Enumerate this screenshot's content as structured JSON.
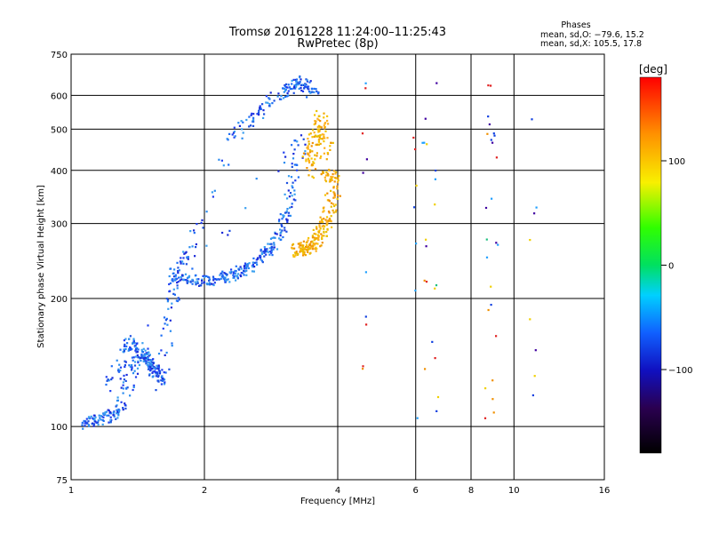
{
  "chart_data": {
    "type": "scatter",
    "title": "Tromsø 20161228 11:24:00–11:25:43",
    "subtitle": "RwPretec (8p)",
    "phases_header": "Phases",
    "phases_line1": "mean, sd,O: −79.6, 15.2",
    "phases_line2": "mean, sd,X: 105.5, 17.8",
    "xlabel": "Frequency [MHz]",
    "ylabel": "Stationary phase Virtual Height [km]",
    "x_scale": "log",
    "y_scale": "log",
    "xlim": [
      1,
      16
    ],
    "ylim": [
      75,
      750
    ],
    "x_ticks": [
      1,
      2,
      4,
      6,
      8,
      10,
      16
    ],
    "x_tick_labels": [
      "1",
      "2",
      "4",
      "6",
      "8",
      "10",
      "16"
    ],
    "y_ticks": [
      75,
      100,
      200,
      300,
      400,
      500,
      600,
      750
    ],
    "y_tick_labels": [
      "75",
      "100",
      "200",
      "300",
      "400",
      "500",
      "600",
      "750"
    ],
    "grid": true,
    "colorbar": {
      "label": "[deg]",
      "range": [
        -180,
        180
      ],
      "ticks": [
        100,
        0,
        -100
      ],
      "tick_labels": [
        "100",
        "0",
        "−100"
      ]
    },
    "series": [
      {
        "mode": "O",
        "x": [
          1.05,
          1.1,
          1.15,
          1.2,
          1.25,
          1.3,
          1.35,
          1.4,
          1.45,
          1.5,
          1.55,
          1.6,
          1.7,
          1.8,
          1.9,
          2.0,
          2.1,
          2.2,
          2.3,
          2.4,
          2.5,
          2.6,
          2.7,
          2.8,
          2.9,
          3.0,
          3.1,
          3.2,
          3.3,
          1.2,
          1.3,
          1.35,
          1.4,
          1.45,
          1.5,
          1.55,
          1.6,
          1.7,
          1.75,
          1.85,
          2.3,
          2.5,
          2.7,
          2.9,
          3.1,
          3.2,
          3.3,
          3.4,
          3.5
        ],
        "y": [
          101,
          103,
          104,
          106,
          108,
          112,
          130,
          145,
          150,
          140,
          135,
          125,
          230,
          225,
          222,
          220,
          222,
          225,
          228,
          232,
          238,
          245,
          255,
          265,
          280,
          300,
          340,
          400,
          480,
          125,
          140,
          160,
          155,
          148,
          142,
          135,
          130,
          210,
          240,
          260,
          480,
          520,
          560,
          600,
          620,
          640,
          650,
          630,
          610
        ],
        "phase_mean": -79.6,
        "phase_sd": 15.2
      },
      {
        "mode": "X",
        "x": [
          3.2,
          3.3,
          3.4,
          3.5,
          3.6,
          3.7,
          3.8,
          3.9,
          3.4,
          3.5,
          3.6,
          3.7,
          3.8,
          3.9
        ],
        "y": [
          260,
          262,
          265,
          270,
          280,
          295,
          320,
          360,
          420,
          460,
          500,
          540,
          400,
          380
        ],
        "phase_mean": 105.5,
        "phase_sd": 17.8
      }
    ],
    "sparse_echoes": {
      "frequencies": [
        4.6,
        6.0,
        6.3,
        6.6,
        8.7,
        9.0,
        11.0
      ],
      "height_range": [
        100,
        650
      ]
    }
  }
}
